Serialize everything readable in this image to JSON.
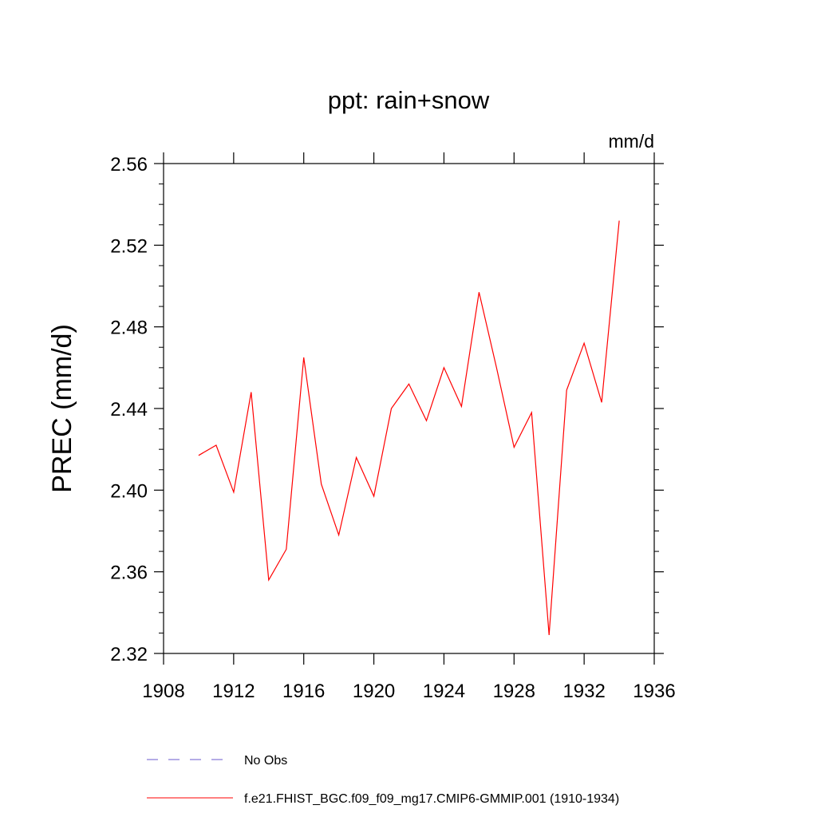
{
  "chart_data": {
    "type": "line",
    "title": "ppt: rain+snow",
    "units_label": "mm/d",
    "ylabel": "PREC  (mm/d)",
    "xlabel": "",
    "xlim": [
      1908,
      1936
    ],
    "ylim": [
      2.32,
      2.56
    ],
    "xticks": [
      "1908",
      "1912",
      "1916",
      "1920",
      "1924",
      "1928",
      "1932",
      "1936"
    ],
    "yticks": [
      "2.32",
      "2.36",
      "2.40",
      "2.44",
      "2.48",
      "2.52",
      "2.56"
    ],
    "grid": false,
    "series": [
      {
        "name": "f.e21.FHIST_BGC.f09_f09_mg17.CMIP6-GMMIP.001 (1910-1934)",
        "color": "#ff0000",
        "style": "solid",
        "x": [
          1910,
          1911,
          1912,
          1913,
          1914,
          1915,
          1916,
          1917,
          1918,
          1919,
          1920,
          1921,
          1922,
          1923,
          1924,
          1925,
          1926,
          1927,
          1928,
          1929,
          1930,
          1931,
          1932,
          1933,
          1934
        ],
        "values": [
          2.417,
          2.422,
          2.399,
          2.448,
          2.356,
          2.371,
          2.465,
          2.403,
          2.378,
          2.416,
          2.397,
          2.44,
          2.452,
          2.434,
          2.46,
          2.441,
          2.497,
          2.46,
          2.421,
          2.438,
          2.329,
          2.449,
          2.472,
          2.443,
          2.532
        ]
      }
    ],
    "legend": [
      {
        "label": "No Obs",
        "color": "#6a5acd",
        "style": "dashed"
      },
      {
        "label": "f.e21.FHIST_BGC.f09_f09_mg17.CMIP6-GMMIP.001 (1910-1934)",
        "color": "#ff0000",
        "style": "solid"
      }
    ],
    "legend_position": "bottom"
  }
}
